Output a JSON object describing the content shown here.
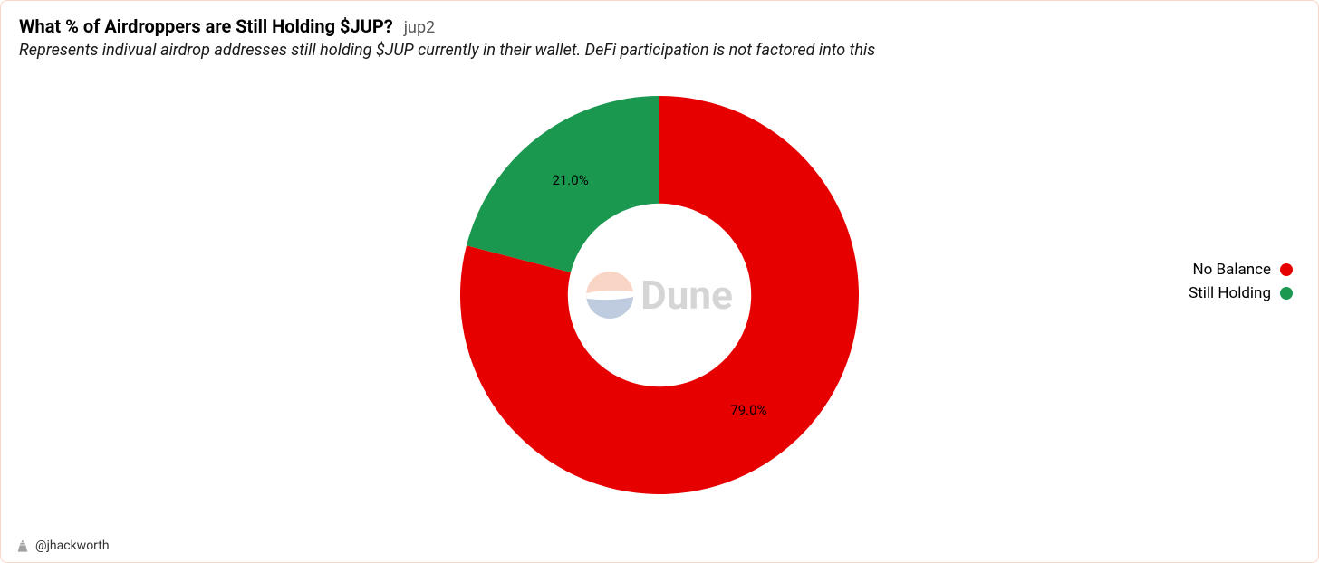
{
  "header": {
    "title": "What % of Airdroppers are Still Holding $JUP?",
    "tag": "jup2",
    "description": "Represents indivual airdrop addresses still holding $JUP currently in their wallet. DeFi participation is not factored into this"
  },
  "chart": {
    "type": "donut",
    "background_color": "#ffffff",
    "inner_radius_ratio": 0.46,
    "outer_radius_ratio": 1.0,
    "start_angle_deg": 0,
    "slices": [
      {
        "label": "No Balance",
        "value": 79.0,
        "display": "79.0%",
        "color": "#e60000"
      },
      {
        "label": "Still Holding",
        "value": 21.0,
        "display": "21.0%",
        "color": "#1a9850"
      }
    ],
    "label_fontsize": 15,
    "label_color": "#000000"
  },
  "legend": {
    "position": "right",
    "items": [
      {
        "label": "No Balance",
        "color": "#e60000"
      },
      {
        "label": "Still Holding",
        "color": "#1a9850"
      }
    ],
    "fontsize": 17
  },
  "watermark": {
    "text": "Dune",
    "logo_top_color": "#f08a5d",
    "logo_bottom_color": "#4a6fa5",
    "opacity": 0.35
  },
  "footer": {
    "author": "@jhackworth"
  }
}
